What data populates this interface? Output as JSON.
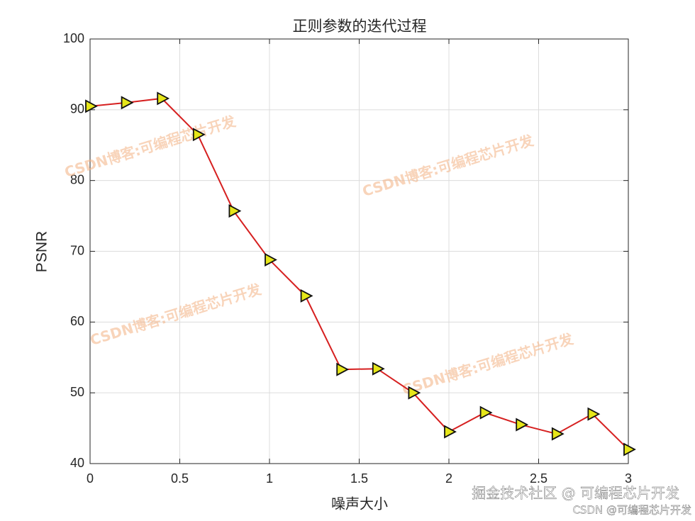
{
  "chart_data": {
    "type": "line",
    "title": "正则参数的迭代过程",
    "x_label": "噪声大小",
    "y_label": "PSNR",
    "x": [
      0,
      0.2,
      0.4,
      0.6,
      0.8,
      1.0,
      1.2,
      1.4,
      1.6,
      1.8,
      2.0,
      2.2,
      2.4,
      2.6,
      2.8,
      3.0
    ],
    "series": [
      {
        "color": "#d62020",
        "marker_color": "#e6e619",
        "values": [
          90.5,
          91,
          91.6,
          86.5,
          75.7,
          68.8,
          63.7,
          53.3,
          53.4,
          50,
          44.5,
          47.2,
          45.5,
          44.2,
          47,
          42
        ]
      }
    ],
    "xlim": [
      0,
      3
    ],
    "xticks": [
      0,
      0.5,
      1,
      1.5,
      2,
      2.5,
      3
    ],
    "ylim": [
      40,
      100
    ],
    "yticks": [
      40,
      50,
      60,
      70,
      80,
      90,
      100
    ],
    "grid": true,
    "watermarks": [
      "CSDN博客:可编程芯片开发",
      "CSDN博客:可编程芯片开发",
      "CSDN博客:可编程芯片开发",
      "CSDN博客:可编程芯片开发"
    ],
    "footer": [
      "掘金技术社区 @ 可编程芯片开发",
      "CSDN @可编程芯片开发"
    ]
  }
}
